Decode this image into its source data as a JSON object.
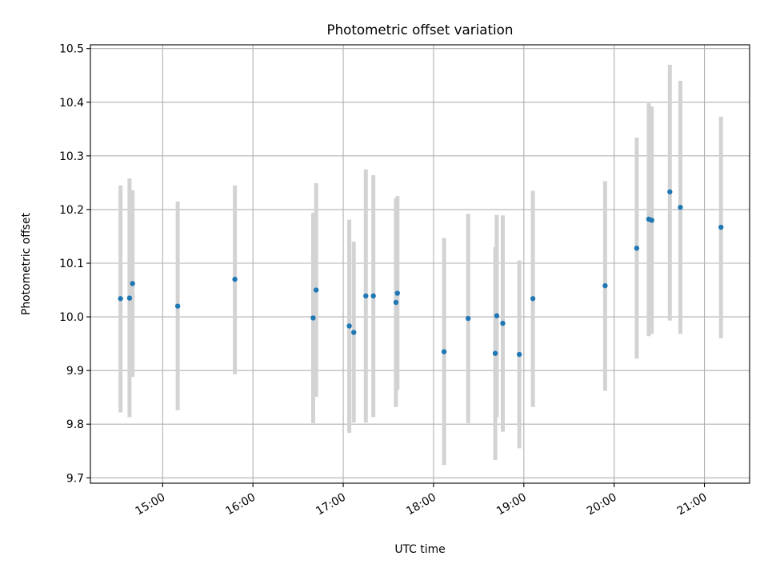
{
  "chart_data": {
    "type": "scatter",
    "title": "Photometric offset variation",
    "xlabel": "UTC time",
    "ylabel": "Photometric offset",
    "x_unit": "UTC hours",
    "xlim": [
      "14:12",
      "21:30"
    ],
    "ylim": [
      9.69,
      10.507
    ],
    "x_ticks": [
      "15:00",
      "16:00",
      "17:00",
      "18:00",
      "19:00",
      "20:00",
      "21:00"
    ],
    "y_ticks": [
      "9.7",
      "9.8",
      "9.9",
      "10.0",
      "10.1",
      "10.2",
      "10.3",
      "10.4",
      "10.5"
    ],
    "grid": true,
    "marker_color": "#1f77b4",
    "errorbar_color": "#d3d3d3",
    "points": [
      {
        "time": "14:32",
        "y": 10.034,
        "y_low": 9.822,
        "y_high": 10.245
      },
      {
        "time": "14:38",
        "y": 10.035,
        "y_low": 9.813,
        "y_high": 10.258
      },
      {
        "time": "14:40",
        "y": 10.062,
        "y_low": 9.888,
        "y_high": 10.236
      },
      {
        "time": "15:10",
        "y": 10.02,
        "y_low": 9.826,
        "y_high": 10.215
      },
      {
        "time": "15:48",
        "y": 10.07,
        "y_low": 9.893,
        "y_high": 10.245
      },
      {
        "time": "16:40",
        "y": 9.998,
        "y_low": 9.802,
        "y_high": 10.194
      },
      {
        "time": "16:42",
        "y": 10.05,
        "y_low": 9.851,
        "y_high": 10.249
      },
      {
        "time": "17:04",
        "y": 9.983,
        "y_low": 9.784,
        "y_high": 10.181
      },
      {
        "time": "17:07",
        "y": 9.971,
        "y_low": 9.803,
        "y_high": 10.14
      },
      {
        "time": "17:15",
        "y": 10.039,
        "y_low": 9.803,
        "y_high": 10.275
      },
      {
        "time": "17:20",
        "y": 10.039,
        "y_low": 9.813,
        "y_high": 10.264
      },
      {
        "time": "17:35",
        "y": 10.027,
        "y_low": 9.832,
        "y_high": 10.221
      },
      {
        "time": "17:36",
        "y": 10.044,
        "y_low": 9.864,
        "y_high": 10.225
      },
      {
        "time": "18:07",
        "y": 9.935,
        "y_low": 9.724,
        "y_high": 10.147
      },
      {
        "time": "18:23",
        "y": 9.997,
        "y_low": 9.802,
        "y_high": 10.192
      },
      {
        "time": "18:41",
        "y": 9.932,
        "y_low": 9.733,
        "y_high": 10.13
      },
      {
        "time": "18:42",
        "y": 10.002,
        "y_low": 9.813,
        "y_high": 10.19
      },
      {
        "time": "18:46",
        "y": 9.988,
        "y_low": 9.786,
        "y_high": 10.189
      },
      {
        "time": "18:57",
        "y": 9.93,
        "y_low": 9.755,
        "y_high": 10.105
      },
      {
        "time": "19:06",
        "y": 10.034,
        "y_low": 9.832,
        "y_high": 10.235
      },
      {
        "time": "19:54",
        "y": 10.058,
        "y_low": 9.862,
        "y_high": 10.253
      },
      {
        "time": "20:15",
        "y": 10.128,
        "y_low": 9.922,
        "y_high": 10.334
      },
      {
        "time": "20:23",
        "y": 10.182,
        "y_low": 9.964,
        "y_high": 10.398
      },
      {
        "time": "20:25",
        "y": 10.18,
        "y_low": 9.968,
        "y_high": 10.392
      },
      {
        "time": "20:37",
        "y": 10.233,
        "y_low": 9.993,
        "y_high": 10.47
      },
      {
        "time": "20:44",
        "y": 10.204,
        "y_low": 9.968,
        "y_high": 10.44
      },
      {
        "time": "21:11",
        "y": 10.167,
        "y_low": 9.96,
        "y_high": 10.373
      }
    ]
  }
}
